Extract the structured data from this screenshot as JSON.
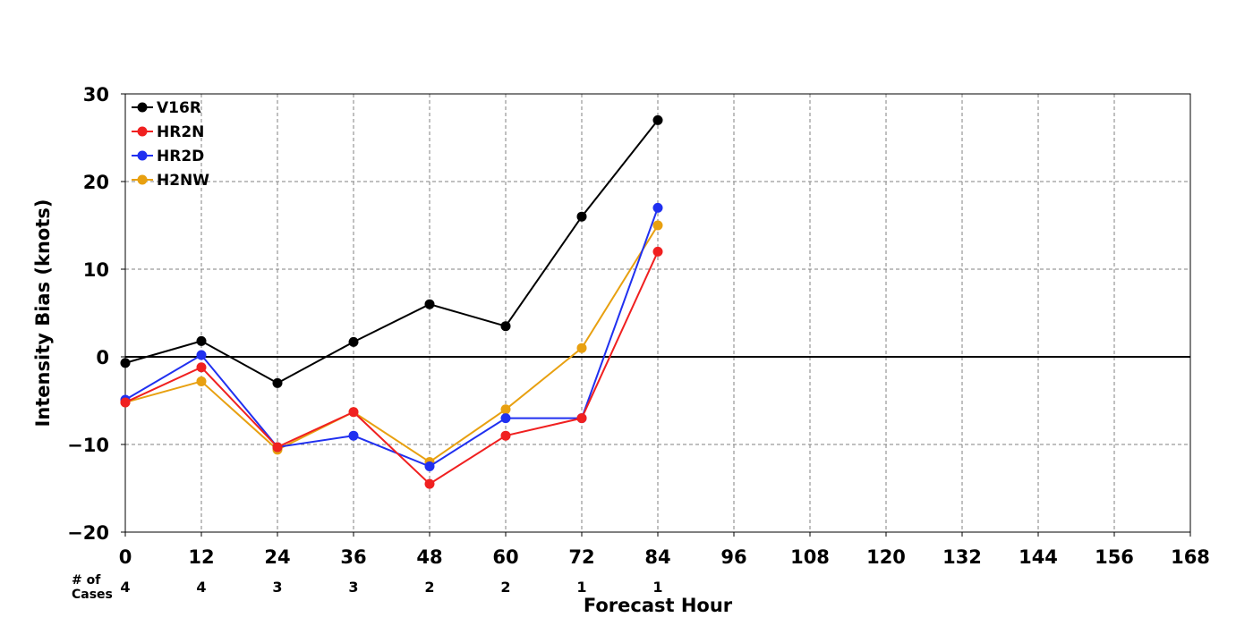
{
  "chart_data": {
    "type": "line",
    "xlabel": "Forecast Hour",
    "ylabel": "Intensity Bias (knots)",
    "xlim": [
      0,
      168
    ],
    "ylim": [
      -20,
      30
    ],
    "x_ticks": [
      0,
      12,
      24,
      36,
      48,
      60,
      72,
      84,
      96,
      108,
      120,
      132,
      144,
      156,
      168
    ],
    "x_tick_labels": [
      "0",
      "12",
      "24",
      "36",
      "48",
      "60",
      "72",
      "84",
      "96",
      "108",
      "120",
      "132",
      "144",
      "156",
      "168"
    ],
    "y_ticks": [
      -20,
      -10,
      0,
      10,
      20,
      30
    ],
    "y_tick_labels": [
      "−20",
      "−10",
      "0",
      "10",
      "20",
      "30"
    ],
    "grid": true,
    "zero_line": true,
    "legend_position": "top-left",
    "x": [
      0,
      12,
      24,
      36,
      48,
      60,
      72,
      84
    ],
    "series": [
      {
        "name": "V16R",
        "color": "#000000",
        "values": [
          -0.7,
          1.8,
          -3.0,
          1.7,
          6.0,
          3.5,
          16.0,
          27.0
        ]
      },
      {
        "name": "HR2N",
        "color": "#f02020",
        "values": [
          -5.2,
          -1.2,
          -10.3,
          -6.3,
          -14.5,
          -9.0,
          -7.0,
          12.0
        ]
      },
      {
        "name": "HR2D",
        "color": "#2030f0",
        "values": [
          -4.9,
          0.2,
          -10.3,
          -9.0,
          -12.5,
          -7.0,
          -7.0,
          17.0
        ]
      },
      {
        "name": "H2NW",
        "color": "#e8a010",
        "values": [
          -5.2,
          -2.8,
          -10.6,
          -6.3,
          -12.0,
          -6.0,
          1.0,
          15.0
        ]
      }
    ],
    "cases": {
      "label_line1": "# of",
      "label_line2": "Cases",
      "x": [
        0,
        12,
        24,
        36,
        48,
        60,
        72,
        84
      ],
      "values": [
        "4",
        "4",
        "3",
        "3",
        "2",
        "2",
        "1",
        "1"
      ]
    }
  }
}
